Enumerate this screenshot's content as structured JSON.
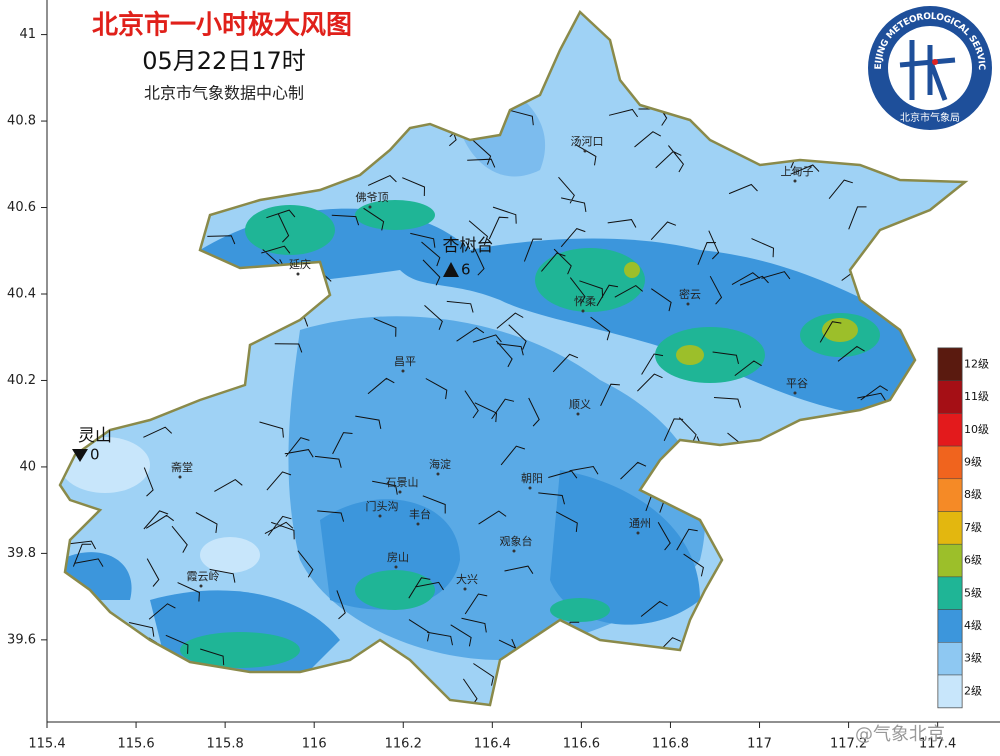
{
  "map": {
    "title": "北京市一小时极大风图",
    "datetime": "05月22日17时",
    "credit": "北京市气象数据中心制",
    "xlim": [
      115.4,
      117.54
    ],
    "ylim": [
      39.41,
      41.08
    ],
    "xticks": [
      115.4,
      115.6,
      115.8,
      116,
      116.2,
      116.4,
      116.6,
      116.8,
      117,
      117.2,
      117.4
    ],
    "yticks": [
      39.6,
      39.8,
      40,
      40.2,
      40.4,
      40.6,
      40.8,
      41
    ],
    "places": [
      "汤河口",
      "上甸子",
      "佛爷顶",
      "延庆",
      "怀柔",
      "密云",
      "昌平",
      "平谷",
      "顺义",
      "斋堂",
      "海淀",
      "朝阳",
      "石景山",
      "门头沟",
      "丰台",
      "通州",
      "观象台",
      "房山",
      "霞云岭",
      "大兴"
    ],
    "stations": [
      {
        "name": "杏树台",
        "value": 6,
        "extreme": "max"
      },
      {
        "name": "灵山",
        "value": 0,
        "extreme": "min"
      }
    ],
    "legend": [
      {
        "label": "12级",
        "color": "#5a1a0f"
      },
      {
        "label": "11级",
        "color": "#a50f15"
      },
      {
        "label": "10级",
        "color": "#e31a1c"
      },
      {
        "label": "9级",
        "color": "#f0641e"
      },
      {
        "label": "8级",
        "color": "#f58a26"
      },
      {
        "label": "7级",
        "color": "#e3b70f"
      },
      {
        "label": "6级",
        "color": "#9cbf2a"
      },
      {
        "label": "5级",
        "color": "#1fb596"
      },
      {
        "label": "4级",
        "color": "#3c96dc"
      },
      {
        "label": "3级",
        "color": "#8ec8f2"
      },
      {
        "label": "2级",
        "color": "#c8e6fb"
      }
    ],
    "logo": {
      "ring": "BEIJING METEOROLOGICAL SERVICE",
      "bottom": "北京市气象局"
    },
    "watermark": "@气象北京"
  }
}
